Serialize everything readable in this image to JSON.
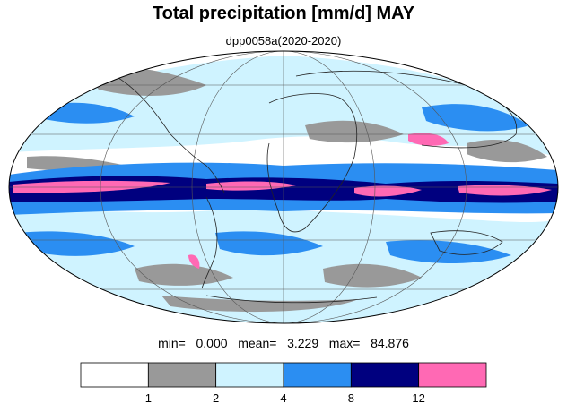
{
  "title": "Total precipitation [mm/d] MAY",
  "subtitle": "dpp0058a(2020-2020)",
  "stats": {
    "min_label": "min=",
    "min_value": "0.000",
    "mean_label": "mean=",
    "mean_value": "3.229",
    "max_label": "max=",
    "max_value": "84.876"
  },
  "colorbar": {
    "colors": [
      "#ffffff",
      "#999999",
      "#cff3ff",
      "#2b8ef2",
      "#00007f",
      "#ff69b4"
    ],
    "tick_labels": [
      "1",
      "2",
      "4",
      "8",
      "12"
    ]
  },
  "map": {
    "projection": "Mollweide",
    "graticule_color": "#555555",
    "coast_color": "#222222"
  }
}
